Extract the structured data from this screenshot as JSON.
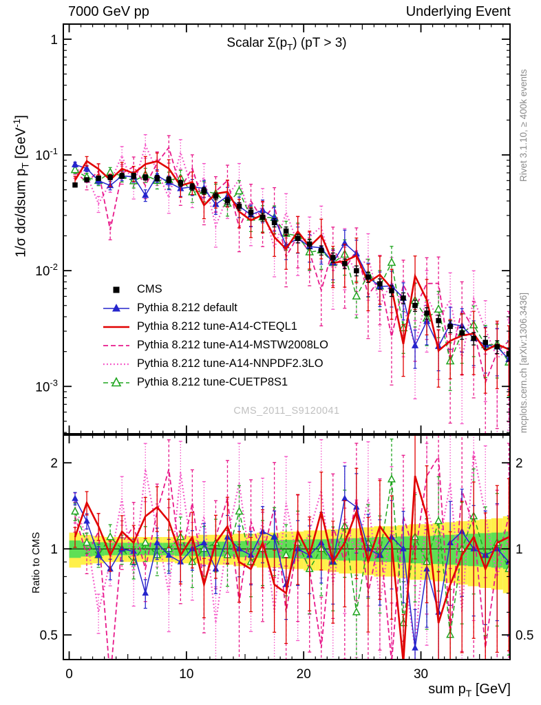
{
  "header": {
    "left": "7000 GeV pp",
    "right": "Underlying Event"
  },
  "side_labels": {
    "top_right": "Rivet 3.1.10, ≥ 400k events",
    "bottom_right": "mcplots.cern.ch [arXiv:1306.3436]"
  },
  "watermark": "CMS_2011_S9120041",
  "chart_data": {
    "type": "line",
    "title_parts": [
      "Scalar Σ(p",
      "T",
      ") (pT > 3)"
    ],
    "axes": {
      "x": {
        "label_parts": [
          "sum p",
          "T",
          " [GeV]"
        ],
        "min": -0.5,
        "max": 37.6,
        "major_ticks": [
          0,
          10,
          20,
          30
        ]
      },
      "y_main": {
        "label_parts": [
          "1/σ dσ/dsum p",
          "T",
          " [GeV",
          "-1",
          "]"
        ],
        "scale": "log",
        "min": 0.00039,
        "max": 1.35,
        "ticks": [
          {
            "v": 1,
            "t": "1"
          },
          {
            "v": 0.1,
            "m": "10",
            "e": "-1"
          },
          {
            "v": 0.01,
            "m": "10",
            "e": "-2"
          },
          {
            "v": 0.001,
            "m": "10",
            "e": "-3"
          }
        ]
      },
      "y_ratio": {
        "label": "Ratio to CMS",
        "scale": "log",
        "min": 0.41,
        "max": 2.5,
        "ticks": [
          {
            "v": 2,
            "t": "2"
          },
          {
            "v": 1,
            "t": "1"
          },
          {
            "v": 0.5,
            "t": "0.5"
          }
        ]
      }
    },
    "x": [
      0.5,
      1.5,
      2.5,
      3.5,
      4.5,
      5.5,
      6.5,
      7.5,
      8.5,
      9.5,
      10.5,
      11.5,
      12.5,
      13.5,
      14.5,
      15.5,
      16.5,
      17.5,
      18.5,
      19.5,
      20.5,
      21.5,
      22.5,
      23.5,
      24.5,
      25.5,
      26.5,
      27.5,
      28.5,
      29.5,
      30.5,
      31.5,
      32.5,
      33.5,
      34.5,
      35.5,
      36.5,
      37.5
    ],
    "series": [
      {
        "id": "cms",
        "label": "CMS",
        "type": "points",
        "marker": "square-filled",
        "color": "#000000",
        "err_frac": [
          0.04,
          0.13
        ],
        "values": [
          0.055,
          0.061,
          0.063,
          0.064,
          0.066,
          0.066,
          0.064,
          0.063,
          0.061,
          0.057,
          0.053,
          0.049,
          0.044,
          0.04,
          0.036,
          0.032,
          0.029,
          0.026,
          0.022,
          0.019,
          0.017,
          0.015,
          0.013,
          0.0115,
          0.01,
          0.0088,
          0.0077,
          0.0067,
          0.0058,
          0.005,
          0.0043,
          0.0037,
          0.0033,
          0.0029,
          0.0026,
          0.0024,
          0.0022,
          0.0019
        ]
      },
      {
        "id": "pythia-default",
        "label": "Pythia 8.212 default",
        "type": "line+points",
        "marker": "triangle-filled",
        "color": "#2525cc",
        "line": "solid",
        "width": 1.5,
        "err_frac": [
          0.05,
          0.45
        ],
        "ratio_to_cms": [
          1.5,
          1.25,
          0.95,
          0.85,
          1.0,
          0.98,
          0.7,
          1.05,
          0.95,
          0.9,
          1.0,
          1.05,
          0.85,
          1.1,
          1.0,
          0.95,
          1.15,
          1.1,
          0.75,
          1.0,
          0.95,
          1.05,
          0.9,
          1.5,
          1.4,
          1.0,
          0.95,
          1.1,
          1.0,
          0.45,
          0.85,
          0.6,
          1.05,
          1.15,
          1.0,
          0.95,
          1.0,
          0.9
        ]
      },
      {
        "id": "tune-a14-cteql1",
        "label": "Pythia 8.212 tune-A14-CTEQL1",
        "type": "line",
        "color": "#e10000",
        "line": "solid",
        "width": 2.6,
        "err_frac": [
          0.08,
          0.6
        ],
        "ratio_to_cms": [
          1.1,
          1.45,
          1.2,
          0.95,
          1.15,
          1.05,
          1.3,
          1.4,
          1.25,
          0.95,
          1.1,
          0.75,
          1.05,
          1.2,
          0.9,
          0.85,
          1.05,
          0.75,
          0.7,
          1.15,
          0.95,
          1.35,
          0.9,
          1.05,
          1.35,
          0.9,
          1.2,
          1.05,
          0.4,
          1.8,
          1.3,
          0.55,
          0.75,
          0.95,
          1.1,
          0.85,
          1.05,
          1.1
        ]
      },
      {
        "id": "tune-a14-mstw2008lo",
        "label": "Pythia 8.212 tune-A14-MSTW2008LO",
        "type": "line",
        "color": "#e8198b",
        "line": "dashed",
        "width": 1.8,
        "err_frac": [
          0.12,
          0.8
        ],
        "ratio_to_cms": [
          1.3,
          0.95,
          1.15,
          0.35,
          1.05,
          1.2,
          0.85,
          1.35,
          1.9,
          0.9,
          1.45,
          0.75,
          1.1,
          1.5,
          0.65,
          1.25,
          0.95,
          1.4,
          0.6,
          1.05,
          0.85,
          0.45,
          1.2,
          0.9,
          1.5,
          0.7,
          1.1,
          0.4,
          1.3,
          0.95,
          1.8,
          2.1,
          0.5,
          1.6,
          1.2,
          0.45,
          0.9,
          1.3
        ]
      },
      {
        "id": "tune-a14-nnpdf23lo",
        "label": "Pythia 8.212 tune-A14-NNPDF2.3LO",
        "type": "line",
        "color": "#f44fc5",
        "line": "dotted",
        "width": 2.2,
        "err_frac": [
          0.12,
          0.8
        ],
        "ratio_to_cms": [
          1.4,
          1.1,
          0.6,
          0.9,
          1.5,
          0.8,
          1.9,
          1.15,
          0.7,
          1.85,
          0.95,
          1.3,
          0.55,
          1.1,
          1.7,
          0.85,
          1.25,
          0.6,
          1.45,
          0.9,
          1.15,
          1.6,
          0.75,
          1.3,
          0.95,
          1.5,
          0.65,
          1.2,
          0.85,
          0.45,
          1.4,
          1.0,
          1.7,
          0.6,
          2.2,
          1.3,
          0.8,
          1.1
        ]
      },
      {
        "id": "tune-cuetp8s1",
        "label": "Pythia 8.212 tune-CUETP8S1",
        "type": "line+points",
        "marker": "triangle-open",
        "color": "#1fa51f",
        "line": "dashed",
        "width": 1.5,
        "err_frac": [
          0.07,
          0.5
        ],
        "ratio_to_cms": [
          1.35,
          1.05,
          0.95,
          1.1,
          1.0,
          0.9,
          1.05,
          0.95,
          1.0,
          1.1,
          0.9,
          1.0,
          1.05,
          0.95,
          1.35,
          0.9,
          1.0,
          1.1,
          0.95,
          1.05,
          0.85,
          1.0,
          0.9,
          1.2,
          0.6,
          1.05,
          0.95,
          1.75,
          0.55,
          1.1,
          0.9,
          1.25,
          0.5,
          1.0,
          1.3,
          0.95,
          1.05,
          0.85
        ]
      }
    ],
    "bands": {
      "colors": {
        "yellow": "#ffef40",
        "green": "#55dd55"
      },
      "yellow_halfwidth": [
        0.14,
        0.12,
        0.11,
        0.1,
        0.1,
        0.1,
        0.1,
        0.1,
        0.1,
        0.11,
        0.11,
        0.12,
        0.12,
        0.12,
        0.13,
        0.13,
        0.14,
        0.14,
        0.15,
        0.15,
        0.16,
        0.16,
        0.17,
        0.18,
        0.18,
        0.19,
        0.2,
        0.2,
        0.21,
        0.22,
        0.22,
        0.23,
        0.24,
        0.25,
        0.26,
        0.27,
        0.28,
        0.3
      ],
      "green_halfwidth": [
        0.07,
        0.06,
        0.055,
        0.05,
        0.05,
        0.05,
        0.05,
        0.05,
        0.05,
        0.055,
        0.055,
        0.06,
        0.06,
        0.06,
        0.065,
        0.065,
        0.07,
        0.07,
        0.075,
        0.075,
        0.08,
        0.08,
        0.085,
        0.09,
        0.09,
        0.095,
        0.1,
        0.1,
        0.105,
        0.11,
        0.11,
        0.115,
        0.12,
        0.125,
        0.13,
        0.135,
        0.14,
        0.15
      ]
    }
  }
}
